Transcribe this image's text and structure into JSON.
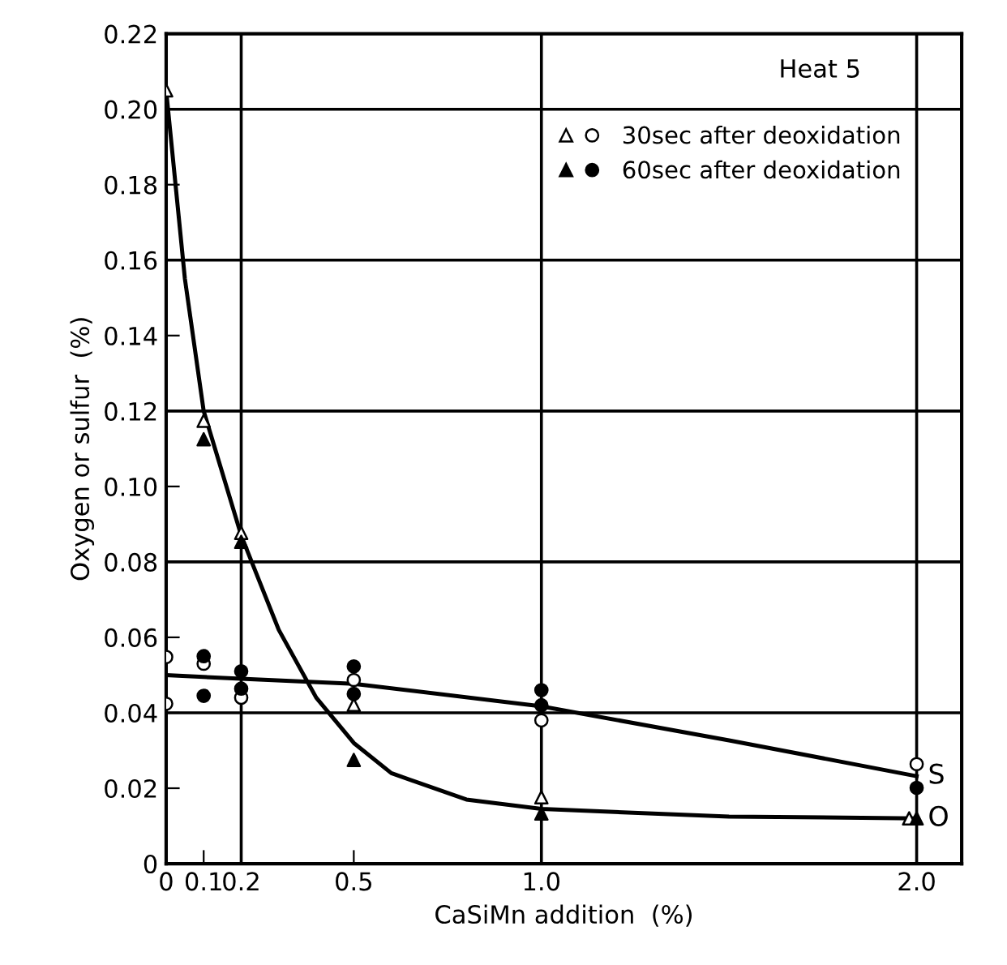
{
  "chart_data": {
    "type": "scatter",
    "xlabel": "CaSiMn addition  (%)",
    "ylabel": "Oxygen or sulfur  (%)",
    "xlim": [
      0,
      2.12
    ],
    "ylim": [
      0,
      0.22
    ],
    "xticks": [
      0,
      0.1,
      0.2,
      0.5,
      {
        "value": 1.0,
        "label": "1.0"
      },
      {
        "value": 2.0,
        "label": "2.0"
      }
    ],
    "yticks": [
      0,
      0.02,
      0.04,
      0.06,
      0.08,
      {
        "value": 0.1,
        "label": "0.10"
      },
      0.12,
      0.14,
      0.16,
      0.18,
      {
        "value": 0.2,
        "label": "0.20"
      },
      0.22
    ],
    "legend": "top right",
    "annotations": [
      "Heat 5"
    ],
    "ref_lines": [
      {
        "axis": "y",
        "value": 0.04,
        "color": "#000000"
      },
      {
        "axis": "y",
        "value": 0.08,
        "color": "#000000"
      },
      {
        "axis": "y",
        "value": 0.12,
        "color": "#000000"
      },
      {
        "axis": "y",
        "value": 0.16,
        "color": "#000000"
      },
      {
        "axis": "y",
        "value": 0.2,
        "color": "#000000"
      },
      {
        "axis": "x",
        "value": 0.2,
        "color": "#000000"
      },
      {
        "axis": "x",
        "value": 1.0,
        "color": "#000000"
      },
      {
        "axis": "x",
        "value": 2.0,
        "color": "#000000"
      }
    ],
    "series": [
      {
        "type": "line",
        "name": "S",
        "color": "#000000",
        "marker": "none",
        "x": [
          0,
          0.2,
          0.5,
          1.0,
          1.5,
          2.0
        ],
        "values": [
          0.05,
          0.049,
          0.0477,
          0.0417,
          0.0327,
          0.0232
        ]
      },
      {
        "type": "line",
        "name": "O",
        "color": "#000000",
        "marker": "none",
        "x": [
          0,
          0.05,
          0.1,
          0.2,
          0.3,
          0.4,
          0.5,
          0.6,
          0.8,
          1.0,
          1.5,
          2.0
        ],
        "values": [
          0.205,
          0.155,
          0.12,
          0.087,
          0.062,
          0.044,
          0.032,
          0.024,
          0.017,
          0.0145,
          0.0125,
          0.012
        ]
      },
      {
        "name": "30sec after deoxidation",
        "color": "#ffffff",
        "marker": "circle",
        "x": [
          0,
          0,
          0.1,
          0.2,
          0.5,
          1.0,
          2.0
        ],
        "values": [
          0.0548,
          0.0424,
          0.053,
          0.044,
          0.0487,
          0.038,
          0.0264
        ]
      },
      {
        "color": "#ffffff",
        "marker": "triangle",
        "x": [
          0,
          0.1,
          0.2,
          0.5,
          1.0,
          1.98
        ],
        "values": [
          0.205,
          0.1174,
          0.0877,
          0.0421,
          0.0176,
          0.012
        ]
      },
      {
        "name": "60sec after deoxidation",
        "color": "#000000",
        "marker": "circle",
        "x": [
          0.1,
          0.1,
          0.2,
          0.2,
          0.5,
          0.5,
          1.0,
          1.0,
          2.0
        ],
        "values": [
          0.055,
          0.0445,
          0.051,
          0.0464,
          0.0523,
          0.045,
          0.046,
          0.042,
          0.0201
        ]
      },
      {
        "color": "#000000",
        "marker": "triangle",
        "x": [
          0.1,
          0.2,
          0.5,
          1.0,
          2.0
        ],
        "values": [
          0.1125,
          0.0853,
          0.0275,
          0.0133,
          0.012
        ]
      }
    ]
  }
}
